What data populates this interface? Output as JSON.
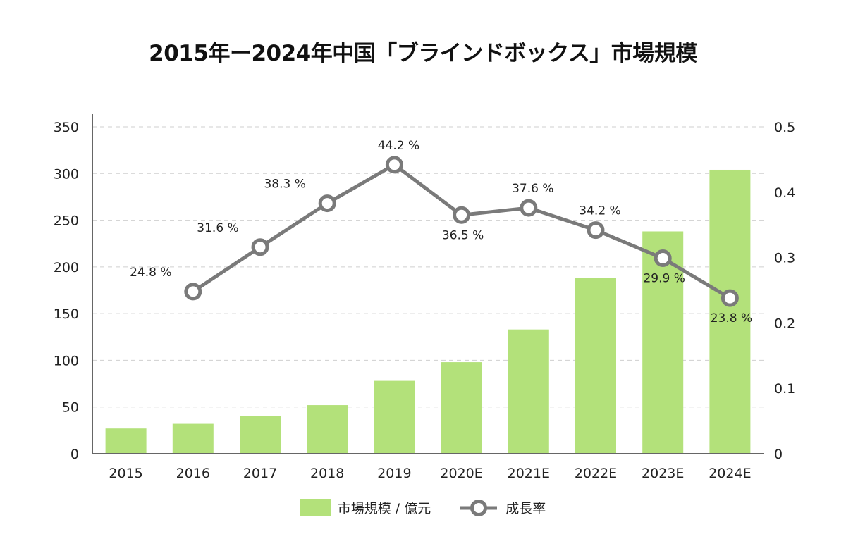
{
  "chart_data": {
    "type": "bar",
    "title": "2015年ー2024年中国「ブラインドボックス」市場規模",
    "categories": [
      "2015",
      "2016",
      "2017",
      "2018",
      "2019",
      "2020E",
      "2021E",
      "2022E",
      "2023E",
      "2024E"
    ],
    "series": [
      {
        "name": "市場規模 / 億元",
        "type": "bar",
        "axis": "left",
        "color": "#b3e17a",
        "values": [
          27,
          32,
          40,
          52,
          78,
          98,
          133,
          188,
          238,
          304
        ]
      },
      {
        "name": "成長率",
        "type": "line",
        "axis": "right",
        "color": "#7a7a7a",
        "values": [
          null,
          0.248,
          0.316,
          0.383,
          0.442,
          0.365,
          0.376,
          0.342,
          0.299,
          0.238
        ],
        "labels": [
          null,
          "24.8 %",
          "31.6 %",
          "38.3 %",
          "44.2 %",
          "36.5 %",
          "37.6 %",
          "34.2 %",
          "29.9 %",
          "23.8 %"
        ],
        "label_positions": [
          null,
          "above-left",
          "above-left",
          "above-left",
          "above",
          "below",
          "above",
          "above",
          "below",
          "below"
        ]
      }
    ],
    "y_left": {
      "label": "",
      "ticks": [
        "0",
        "50",
        "100",
        "150",
        "200",
        "250",
        "300",
        "350"
      ],
      "range": [
        0,
        350
      ]
    },
    "y_right": {
      "label": "",
      "ticks": [
        "0",
        "0.1",
        "0.2",
        "0.3",
        "0.4",
        "0.5"
      ],
      "range": [
        0,
        0.5
      ]
    },
    "xlabel": "",
    "grid": true,
    "legend": {
      "position": "bottom",
      "entries": [
        "市場規模 / 億元",
        "成長率"
      ]
    }
  }
}
